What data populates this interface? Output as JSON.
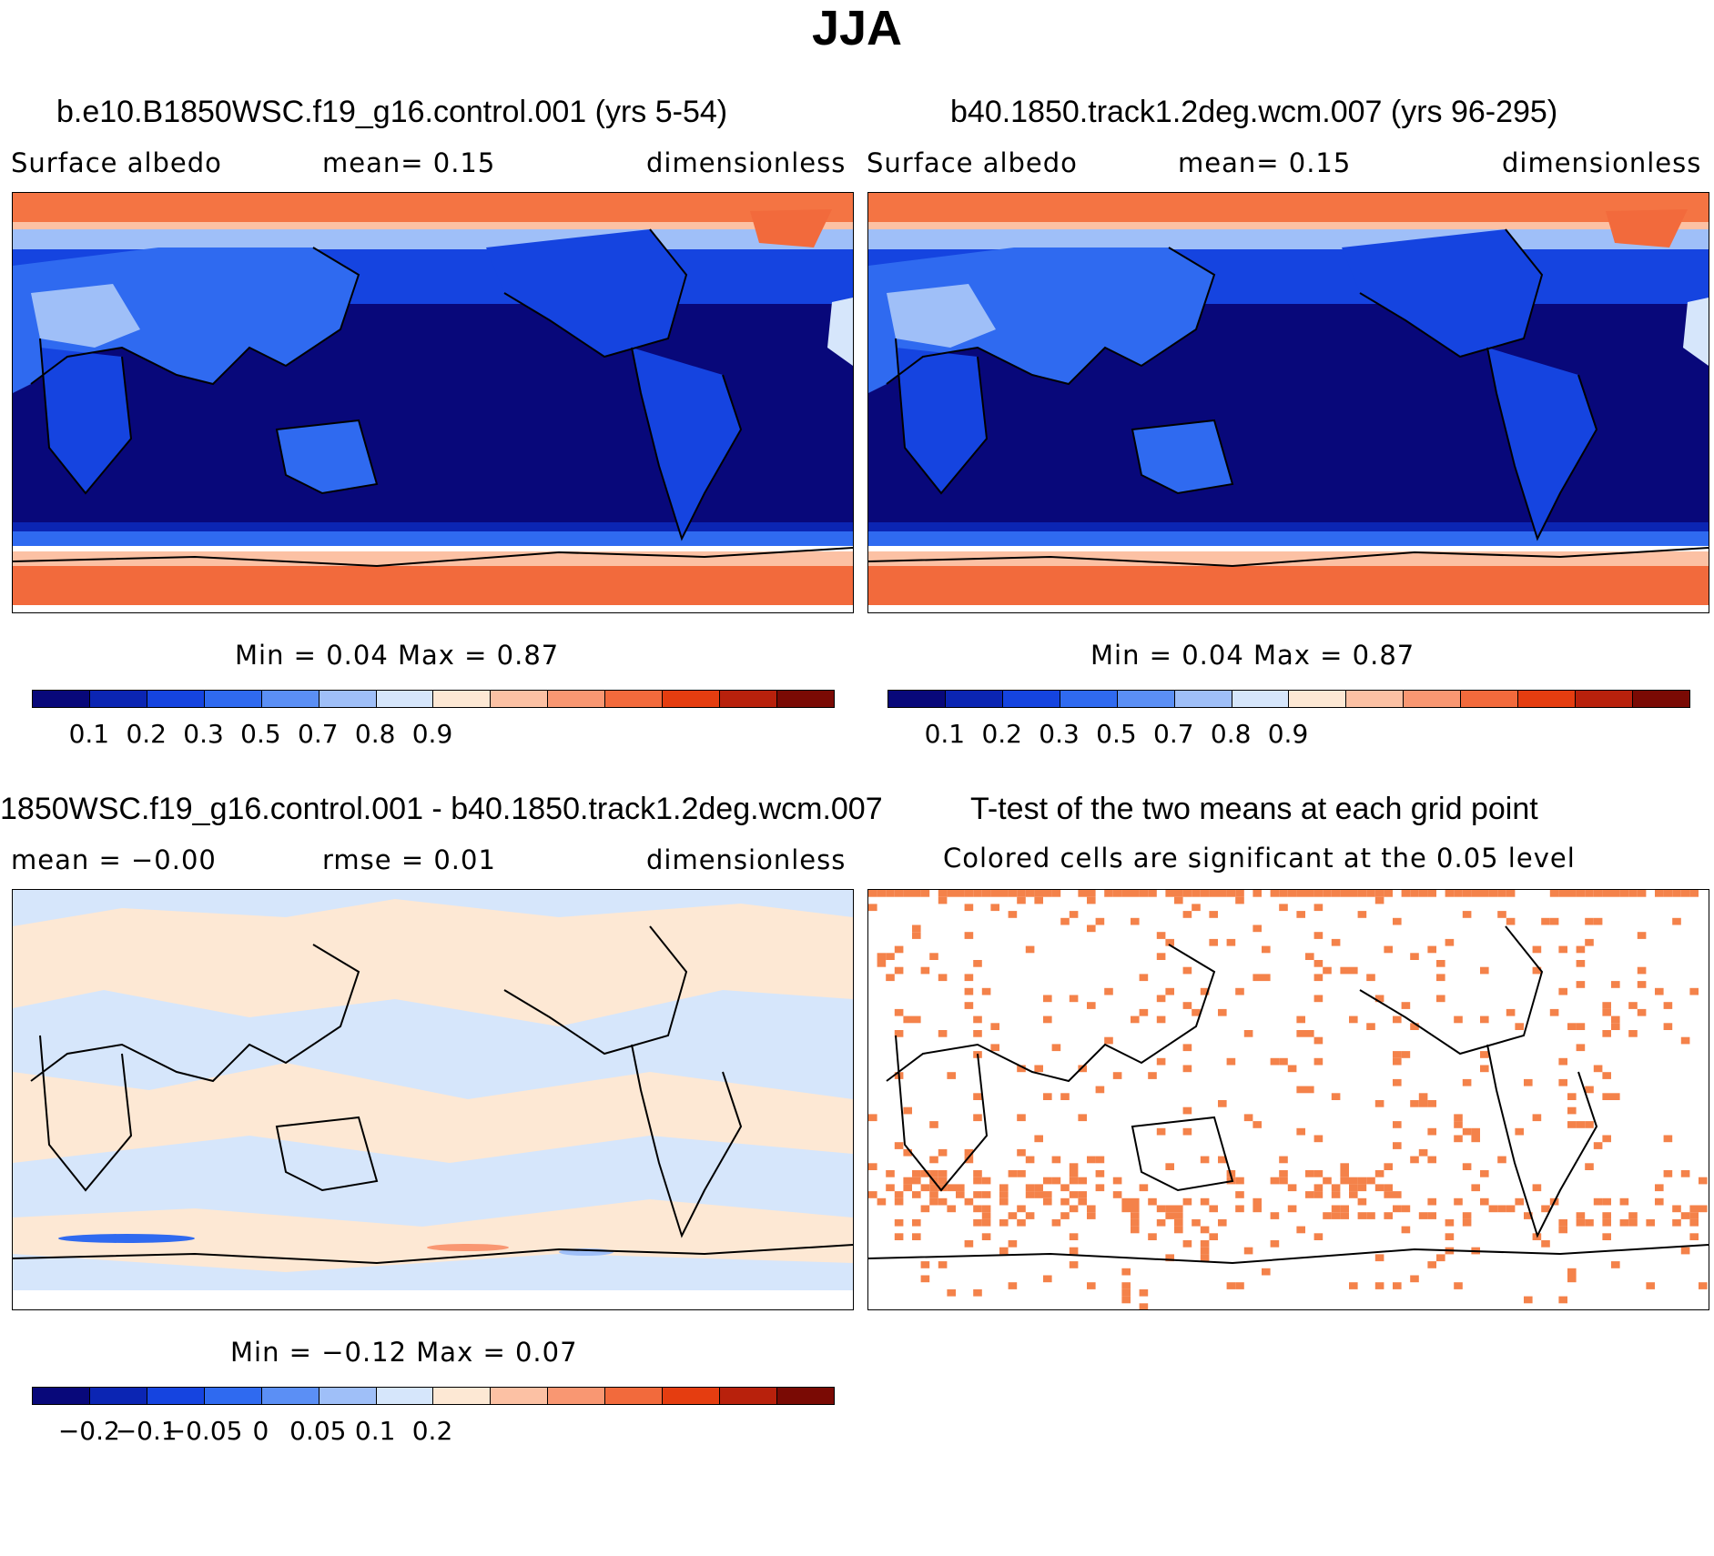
{
  "figure_title": "JJA",
  "panels": [
    {
      "title": "b.e10.B1850WSC.f19_g16.control.001 (yrs 5-54)",
      "sub_left": "Surface  albedo",
      "sub_mid": "mean=     0.15",
      "sub_right": "dimensionless",
      "minmax": "Min  =      0.04  Max  =      0.87",
      "colorbar_ticks": [
        "0.1",
        "0.2",
        "0.3",
        "0.5",
        "0.7",
        "0.8",
        "0.9"
      ]
    },
    {
      "title": "b40.1850.track1.2deg.wcm.007 (yrs 96-295)",
      "sub_left": "Surface  albedo",
      "sub_mid": "mean=     0.15",
      "sub_right": "dimensionless",
      "minmax": "Min  =      0.04  Max  =      0.87",
      "colorbar_ticks": [
        "0.1",
        "0.2",
        "0.3",
        "0.5",
        "0.7",
        "0.8",
        "0.9"
      ]
    },
    {
      "title": "1850WSC.f19_g16.control.001 - b40.1850.track1.2deg.wcm.007",
      "sub_left": "mean  =     −0.00",
      "sub_mid": "rmse  =      0.01",
      "sub_right": "dimensionless",
      "minmax": "Min  =    −0.12  Max  =      0.07",
      "colorbar_ticks": [
        "−0.2",
        "−0.1",
        "−0.05",
        "0",
        "0.05",
        "0.1",
        "0.2"
      ]
    },
    {
      "title": "T-test of the two means at each grid point",
      "sub_center": "Colored  cells  are  significant  at  the  0.05  level"
    }
  ],
  "colors": {
    "seq_palette": [
      "#08087a",
      "#0b25b3",
      "#1544e0",
      "#2f6af0",
      "#5b8ff5",
      "#9fbff8",
      "#d6e6fb",
      "#fde8d4",
      "#fcc1a4",
      "#f99772",
      "#f26a3c",
      "#e53d10",
      "#b8210c",
      "#7a0a04"
    ],
    "ttest_sig": "#f4824a"
  }
}
